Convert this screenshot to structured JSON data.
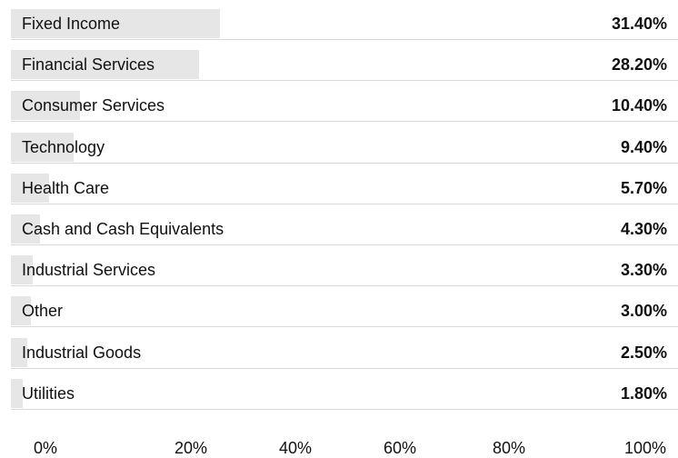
{
  "chart_data": {
    "type": "bar",
    "orientation": "horizontal",
    "categories": [
      "Fixed Income",
      "Financial Services",
      "Consumer Services",
      "Technology",
      "Health Care",
      "Cash and Cash Equivalents",
      "Industrial Services",
      "Other",
      "Industrial Goods",
      "Utilities"
    ],
    "values": [
      31.4,
      28.2,
      10.4,
      9.4,
      5.7,
      4.3,
      3.3,
      3.0,
      2.5,
      1.8
    ],
    "value_labels": [
      "31.40%",
      "28.20%",
      "10.40%",
      "9.40%",
      "5.70%",
      "4.30%",
      "3.30%",
      "3.00%",
      "2.50%",
      "1.80%"
    ],
    "xlim": [
      0,
      100
    ],
    "xticks": [
      "0%",
      "20%",
      "40%",
      "60%",
      "80%",
      "100%"
    ],
    "title": "",
    "xlabel": "",
    "ylabel": "",
    "grid": false,
    "legend": "none",
    "colors": {
      "bar": "#e6e6e6",
      "text": "#111111",
      "divider": "#d9d9d9"
    }
  }
}
